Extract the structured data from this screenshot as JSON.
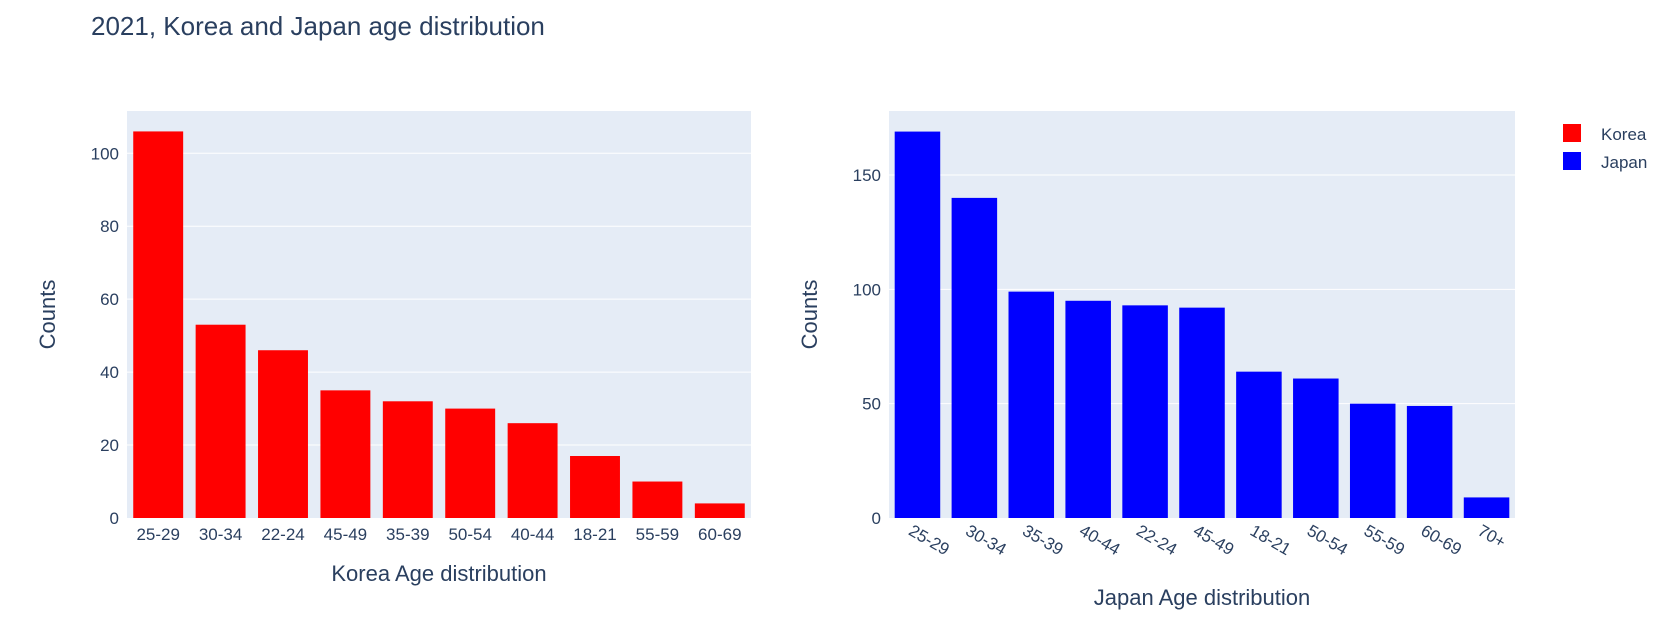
{
  "chart_title": "2021, Korea and Japan age distribution",
  "legend": [
    {
      "label": "Korea",
      "color": "#ff0000"
    },
    {
      "label": "Japan",
      "color": "#0000ff"
    }
  ],
  "chart_data": [
    {
      "type": "bar",
      "series_name": "Korea",
      "color": "#ff0000",
      "categories": [
        "25-29",
        "30-34",
        "22-24",
        "45-49",
        "35-39",
        "50-54",
        "40-44",
        "18-21",
        "55-59",
        "60-69"
      ],
      "values": [
        106,
        53,
        46,
        35,
        32,
        30,
        26,
        17,
        10,
        4
      ],
      "xlabel": "Korea Age distribution",
      "ylabel": "Counts",
      "ylim": [
        0,
        111.6
      ],
      "yticks": [
        0,
        20,
        40,
        60,
        80,
        100
      ],
      "tick_angle": 0,
      "grid": true
    },
    {
      "type": "bar",
      "series_name": "Japan",
      "color": "#0000ff",
      "categories": [
        "25-29",
        "30-34",
        "35-39",
        "40-44",
        "22-24",
        "45-49",
        "18-21",
        "50-54",
        "55-59",
        "60-69",
        "70+"
      ],
      "values": [
        169,
        140,
        99,
        95,
        93,
        92,
        64,
        61,
        50,
        49,
        9
      ],
      "xlabel": "Japan Age distribution",
      "ylabel": "Counts",
      "ylim": [
        0,
        178
      ],
      "yticks": [
        0,
        50,
        100,
        150
      ],
      "tick_angle": 30,
      "grid": true
    }
  ]
}
